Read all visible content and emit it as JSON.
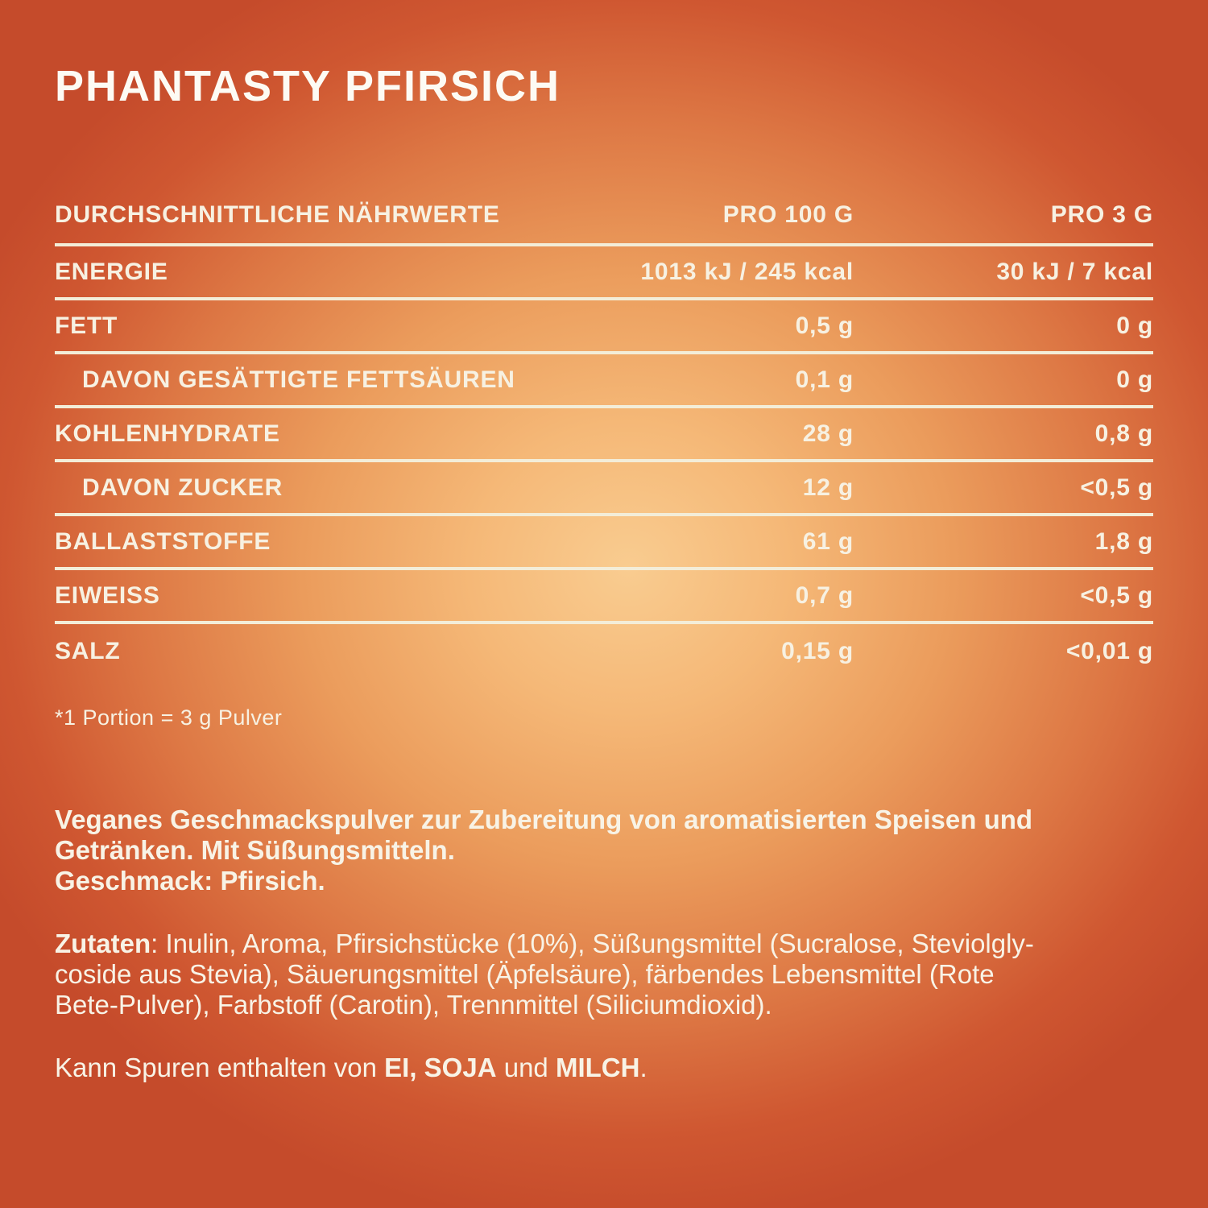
{
  "title": "PHANTASTY PFIRSICH",
  "colors": {
    "background_center": "#f9cc90",
    "background_edge": "#c54b2b",
    "text_cream": "#f7f1e2",
    "divider_line": "#f3edd8",
    "title_white": "#fdfbf4"
  },
  "table": {
    "header": {
      "label": "DURCHSCHNITTLICHE NÄHRWERTE",
      "per100": "PRO 100 G",
      "per_portion": "PRO 3 G"
    },
    "rows": [
      {
        "label": "ENERGIE",
        "per100": "1013 kJ / 245 kcal",
        "per_portion": "30 kJ / 7 kcal"
      },
      {
        "label": "FETT",
        "per100": "0,5 g",
        "per_portion": "0 g"
      },
      {
        "label": "DAVON GESÄTTIGTE FETTSÄUREN",
        "per100": "0,1 g",
        "per_portion": "0 g"
      },
      {
        "label": "KOHLENHYDRATE",
        "per100": "28 g",
        "per_portion": "0,8 g"
      },
      {
        "label": "DAVON ZUCKER",
        "per100": "12 g",
        "per_portion": "<0,5 g"
      },
      {
        "label": "BALLASTSTOFFE",
        "per100": "61 g",
        "per_portion": "1,8 g"
      },
      {
        "label": "EIWEISS",
        "per100": "0,7 g",
        "per_portion": "<0,5 g"
      },
      {
        "label": "SALZ",
        "per100": "0,15 g",
        "per_portion": "<0,01 g"
      }
    ],
    "footnote": "*1 Portion = 3 g Pulver"
  },
  "description": {
    "line1": "Veganes Geschmackspulver zur Zubereitung von aromatisierten Speisen und",
    "line2": "Getränken. Mit Süßungsmitteln.",
    "line3": "Geschmack: Pfirsich."
  },
  "ingredients": {
    "bold_prefix": "Zutaten",
    "line1_rest": ": Inulin, Aroma, Pfirsichstücke (10%), Süßungsmittel (Sucralose, Steviolgly-",
    "line2": "coside aus Stevia), Säuerungsmittel (Äpfelsäure), färbendes Lebensmittel (Rote",
    "line3": "Bete-Pulver), Farbstoff (Carotin), Trennmittel (Siliciumdioxid)."
  },
  "allergens": {
    "prefix": "Kann Spuren enthalten von ",
    "bold1": "EI, SOJA",
    "mid": " und ",
    "bold2": "MILCH",
    "suffix": "."
  }
}
